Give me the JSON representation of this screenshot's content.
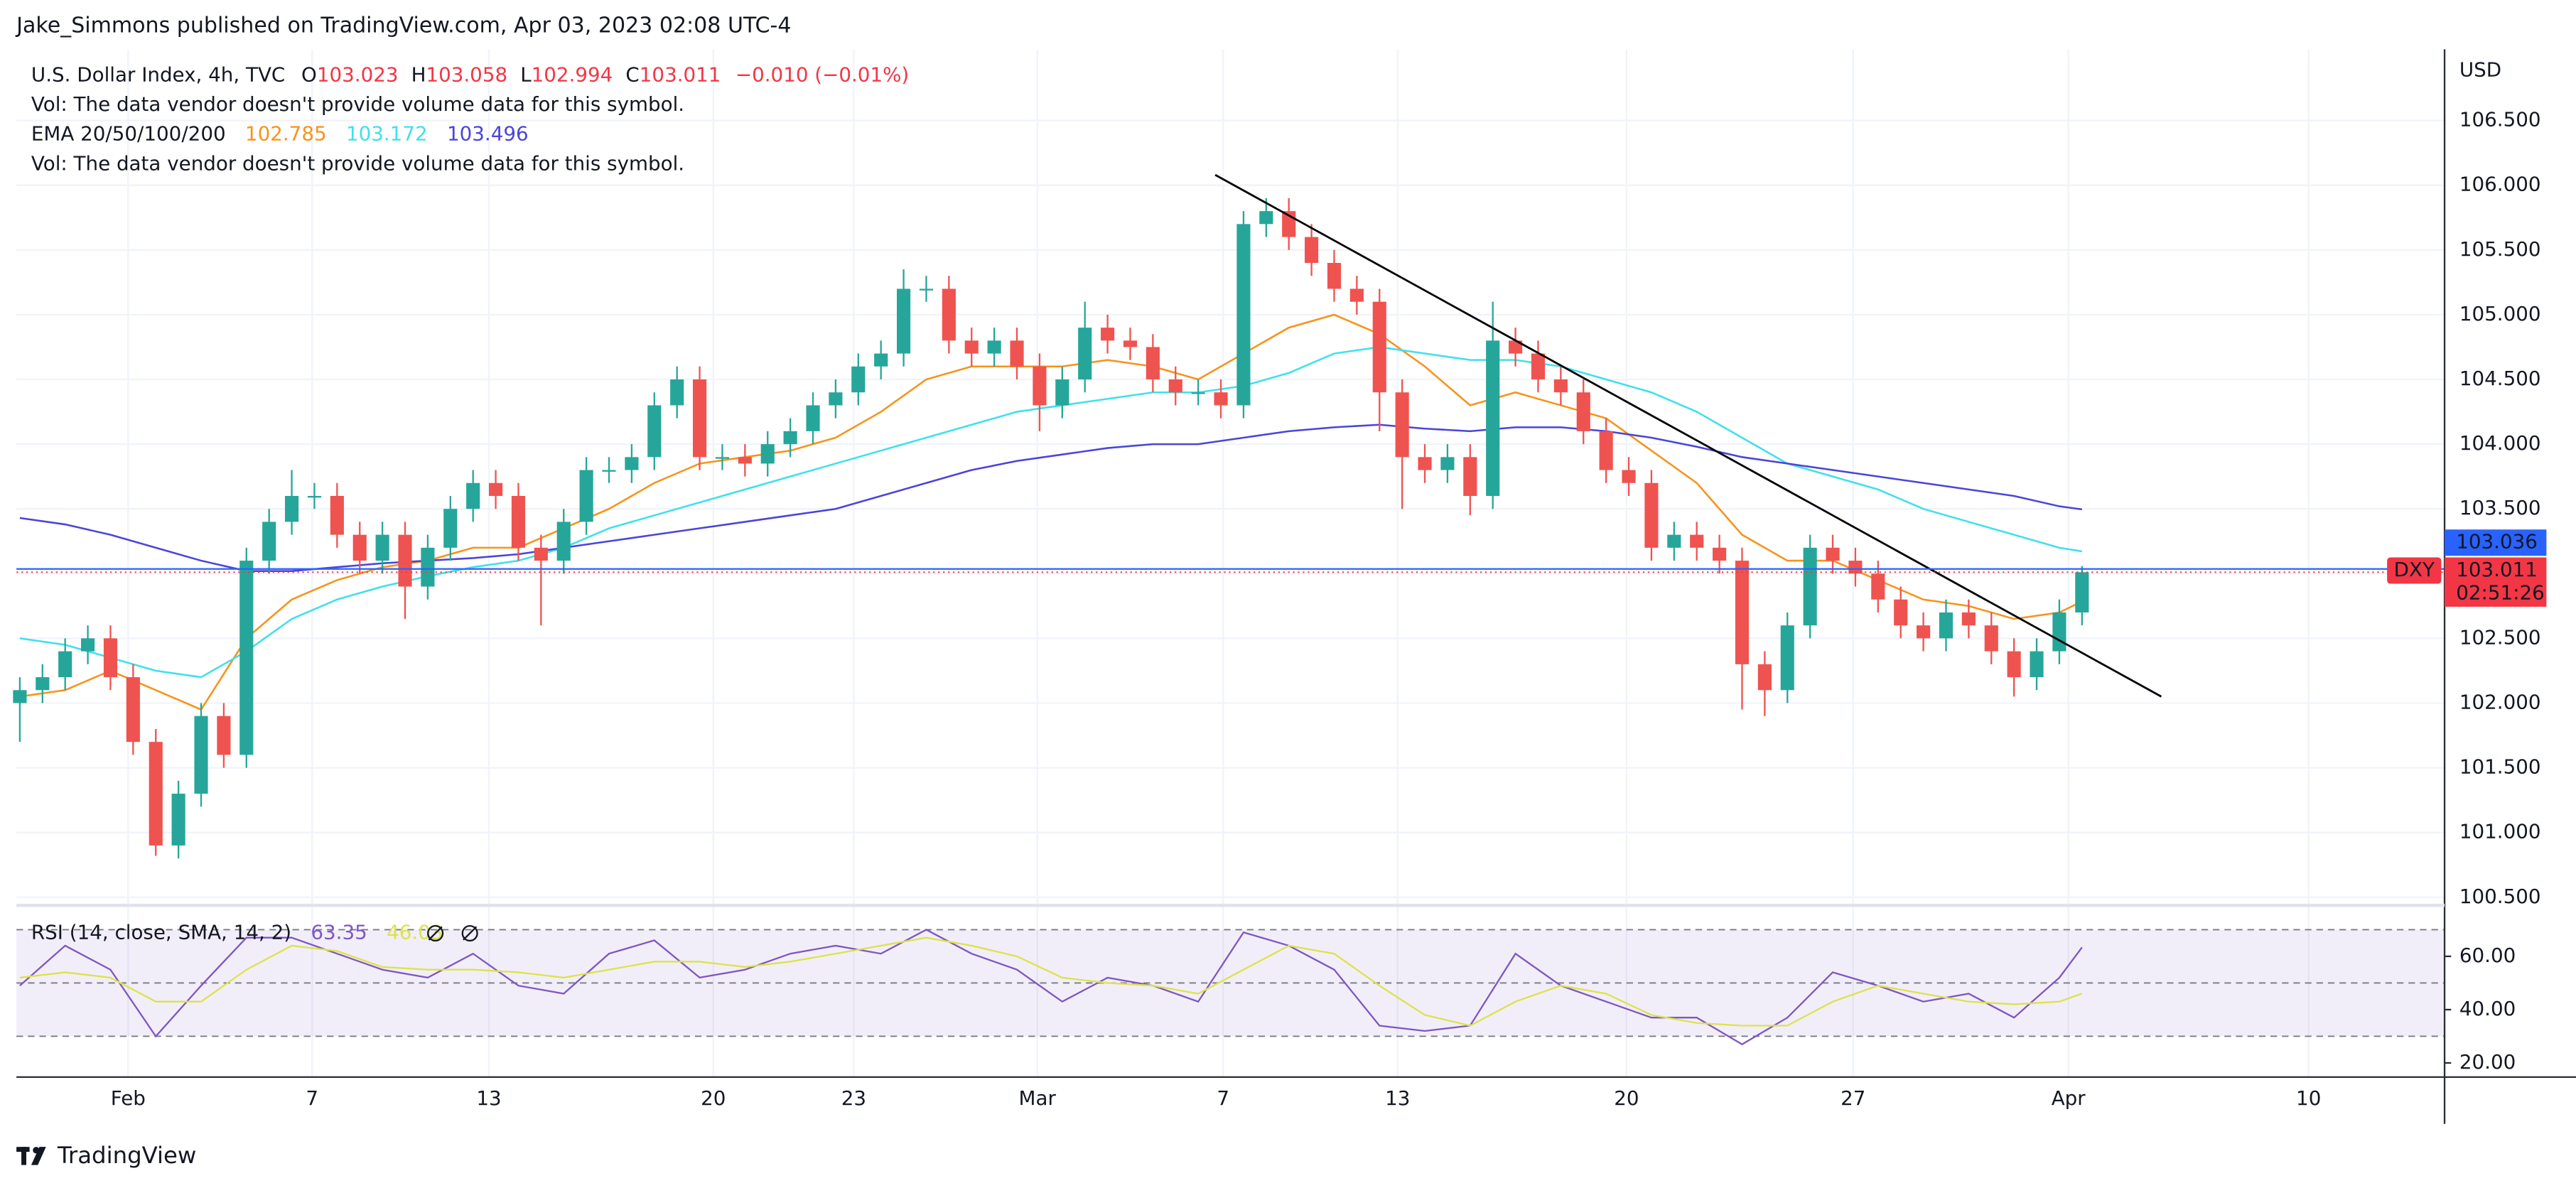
{
  "header": {
    "publisher": "Jake_Simmons published on TradingView.com, Apr 03, 2023 02:08 UTC-4",
    "logo": "TradingView"
  },
  "chart_data": [
    {
      "type": "candlestick",
      "symbol": "DXY",
      "currency": "USD",
      "legend": {
        "title": "U.S. Dollar Index, 4h, TVC",
        "ohlc": [
          {
            "key": "O",
            "value": 103.023
          },
          {
            "key": "H",
            "value": 103.058
          },
          {
            "key": "L",
            "value": 102.994
          },
          {
            "key": "C",
            "value": 103.011
          }
        ],
        "change": "−0.010 (−0.01%)",
        "notes": [
          "Vol: The data vendor doesn't provide volume data for this symbol.",
          "Vol: The data vendor doesn't provide volume data for this symbol."
        ],
        "ema_title": "EMA 20/50/100/200"
      },
      "up_color": "#26a69a",
      "down_color": "#ef5350",
      "open": [
        102.0,
        102.1,
        102.2,
        102.4,
        102.5,
        102.2,
        101.7,
        100.9,
        101.3,
        101.9,
        101.6,
        103.1,
        103.4,
        103.6,
        103.6,
        103.3,
        103.1,
        103.3,
        102.9,
        103.2,
        103.5,
        103.7,
        103.6,
        103.2,
        103.1,
        103.4,
        103.8,
        103.8,
        103.9,
        104.3,
        104.5,
        103.9,
        103.9,
        103.85,
        104.0,
        104.1,
        104.3,
        104.4,
        104.6,
        104.7,
        105.2,
        105.2,
        104.8,
        104.7,
        104.8,
        104.6,
        104.3,
        104.5,
        104.9,
        104.8,
        104.75,
        104.5,
        104.4,
        104.4,
        104.3,
        105.7,
        105.8,
        105.6,
        105.4,
        105.2,
        105.1,
        104.4,
        103.9,
        103.8,
        103.9,
        103.6,
        104.8,
        104.7,
        104.5,
        104.4,
        104.1,
        103.8,
        103.7,
        103.2,
        103.3,
        103.2,
        103.1,
        102.3,
        102.1,
        102.6,
        103.2,
        103.1,
        103.0,
        102.8,
        102.6,
        102.5,
        102.7,
        102.6,
        102.4,
        102.2,
        102.4,
        102.7
      ],
      "high": [
        102.2,
        102.3,
        102.5,
        102.6,
        102.6,
        102.3,
        101.8,
        101.4,
        102.0,
        102.0,
        103.2,
        103.5,
        103.8,
        103.7,
        103.7,
        103.4,
        103.4,
        103.4,
        103.3,
        103.6,
        103.8,
        103.8,
        103.7,
        103.3,
        103.5,
        103.9,
        103.9,
        104.0,
        104.4,
        104.6,
        104.6,
        104.0,
        104.0,
        104.1,
        104.2,
        104.4,
        104.5,
        104.7,
        104.8,
        105.35,
        105.3,
        105.3,
        104.9,
        104.9,
        104.9,
        104.7,
        104.6,
        105.1,
        105.0,
        104.9,
        104.85,
        104.6,
        104.5,
        104.5,
        105.8,
        105.9,
        105.9,
        105.7,
        105.5,
        105.3,
        105.2,
        104.5,
        104.0,
        104.0,
        104.0,
        105.1,
        104.9,
        104.8,
        104.6,
        104.5,
        104.2,
        103.9,
        103.8,
        103.4,
        103.4,
        103.3,
        103.2,
        102.4,
        102.7,
        103.3,
        103.3,
        103.2,
        103.1,
        102.9,
        102.7,
        102.8,
        102.8,
        102.7,
        102.5,
        102.5,
        102.8,
        103.058
      ],
      "low": [
        101.7,
        102.0,
        102.1,
        102.3,
        102.1,
        101.6,
        100.82,
        100.8,
        101.2,
        101.5,
        101.5,
        103.0,
        103.3,
        103.5,
        103.2,
        103.0,
        103.0,
        102.65,
        102.8,
        103.1,
        103.4,
        103.5,
        103.1,
        102.6,
        103.0,
        103.3,
        103.7,
        103.7,
        103.8,
        104.2,
        103.8,
        103.8,
        103.75,
        103.75,
        103.9,
        104.0,
        104.2,
        104.3,
        104.5,
        104.6,
        105.1,
        104.7,
        104.6,
        104.6,
        104.5,
        104.1,
        104.2,
        104.4,
        104.7,
        104.65,
        104.4,
        104.3,
        104.3,
        104.2,
        104.2,
        105.6,
        105.5,
        105.3,
        105.1,
        105.0,
        104.1,
        103.5,
        103.7,
        103.7,
        103.45,
        103.5,
        104.6,
        104.4,
        104.3,
        104.0,
        103.7,
        103.6,
        103.1,
        103.1,
        103.1,
        103.0,
        101.95,
        101.9,
        102.0,
        102.5,
        103.0,
        102.9,
        102.7,
        102.5,
        102.4,
        102.4,
        102.5,
        102.3,
        102.05,
        102.1,
        102.3,
        102.6
      ],
      "close": [
        102.1,
        102.2,
        102.4,
        102.5,
        102.2,
        101.7,
        100.9,
        101.3,
        101.9,
        101.6,
        103.1,
        103.4,
        103.6,
        103.6,
        103.3,
        103.1,
        103.3,
        102.9,
        103.2,
        103.5,
        103.7,
        103.6,
        103.2,
        103.1,
        103.4,
        103.8,
        103.8,
        103.9,
        104.3,
        104.5,
        103.9,
        103.9,
        103.85,
        104.0,
        104.1,
        104.3,
        104.4,
        104.6,
        104.7,
        105.2,
        105.2,
        104.8,
        104.7,
        104.8,
        104.6,
        104.3,
        104.5,
        104.9,
        104.8,
        104.75,
        104.5,
        104.4,
        104.4,
        104.3,
        105.7,
        105.8,
        105.6,
        105.4,
        105.2,
        105.1,
        104.4,
        103.9,
        103.8,
        103.9,
        103.6,
        104.8,
        104.7,
        104.5,
        104.4,
        104.1,
        103.8,
        103.7,
        103.2,
        103.3,
        103.2,
        103.1,
        102.3,
        102.1,
        102.6,
        103.2,
        103.1,
        103.0,
        102.8,
        102.6,
        102.5,
        102.7,
        102.6,
        102.4,
        102.2,
        102.4,
        102.7,
        103.011
      ],
      "line_x": [
        0,
        2,
        4,
        6,
        8,
        10,
        12,
        14,
        16,
        18,
        20,
        22,
        24,
        26,
        28,
        30,
        32,
        34,
        36,
        38,
        40,
        42,
        44,
        46,
        48,
        50,
        52,
        54,
        56,
        58,
        60,
        62,
        64,
        66,
        68,
        70,
        72,
        74,
        76,
        78,
        80,
        82,
        84,
        86,
        88,
        90,
        91
      ],
      "series": [
        {
          "color": "#f7931a",
          "values": [
            102.05,
            102.1,
            102.25,
            102.1,
            101.95,
            102.5,
            102.8,
            102.95,
            103.05,
            103.1,
            103.2,
            103.2,
            103.35,
            103.5,
            103.7,
            103.85,
            103.9,
            103.95,
            104.05,
            104.25,
            104.5,
            104.6,
            104.6,
            104.6,
            104.65,
            104.6,
            104.5,
            104.7,
            104.9,
            105.0,
            104.85,
            104.6,
            104.3,
            104.4,
            104.3,
            104.2,
            103.95,
            103.7,
            103.3,
            103.1,
            103.1,
            102.95,
            102.8,
            102.75,
            102.65,
            102.7,
            102.785
          ]
        },
        {
          "color": "#3fe0ec",
          "values": [
            102.5,
            102.45,
            102.35,
            102.25,
            102.2,
            102.4,
            102.65,
            102.8,
            102.9,
            102.98,
            103.05,
            103.1,
            103.2,
            103.35,
            103.45,
            103.55,
            103.65,
            103.75,
            103.85,
            103.95,
            104.05,
            104.15,
            104.25,
            104.3,
            104.35,
            104.4,
            104.4,
            104.45,
            104.55,
            104.7,
            104.75,
            104.7,
            104.65,
            104.65,
            104.6,
            104.5,
            104.4,
            104.25,
            104.05,
            103.85,
            103.75,
            103.65,
            103.5,
            103.4,
            103.3,
            103.2,
            103.172
          ]
        },
        {
          "color": "#4b45d9",
          "values": [
            103.43,
            103.38,
            103.3,
            103.2,
            103.1,
            103.02,
            103.02,
            103.05,
            103.08,
            103.1,
            103.12,
            103.15,
            103.2,
            103.25,
            103.3,
            103.35,
            103.4,
            103.45,
            103.5,
            103.6,
            103.7,
            103.8,
            103.87,
            103.92,
            103.97,
            104.0,
            104.0,
            104.05,
            104.1,
            104.13,
            104.15,
            104.12,
            104.1,
            104.13,
            104.13,
            104.1,
            104.05,
            103.98,
            103.9,
            103.85,
            103.8,
            103.75,
            103.7,
            103.65,
            103.6,
            103.52,
            103.496
          ]
        }
      ],
      "trendline": {
        "x": [
          52.75,
          94.5
        ],
        "y": [
          106.08,
          102.05
        ],
        "color": "#000000"
      },
      "price_line": {
        "value": 103.036,
        "color": "#2962ff"
      },
      "last_price_color": "#f23645",
      "countdown": "02:51:26",
      "xlim": [
        -0.15,
        107
      ],
      "xticks": [
        {
          "value": 4.78,
          "label": "Feb"
        },
        {
          "value": 12.9,
          "label": "7"
        },
        {
          "value": 20.7,
          "label": "13"
        },
        {
          "value": 30.6,
          "label": "20"
        },
        {
          "value": 36.8,
          "label": "23"
        },
        {
          "value": 44.9,
          "label": "Mar"
        },
        {
          "value": 53.1,
          "label": "7"
        },
        {
          "value": 60.8,
          "label": "13"
        },
        {
          "value": 70.9,
          "label": "20"
        },
        {
          "value": 80.9,
          "label": "27"
        },
        {
          "value": 90.4,
          "label": "Apr"
        },
        {
          "value": 101.0,
          "label": "10"
        }
      ],
      "ylim": [
        100.45,
        107.05
      ],
      "yticks": [
        {
          "value": 100.5,
          "label": "100.500"
        },
        {
          "value": 101,
          "label": "101.000"
        },
        {
          "value": 101.5,
          "label": "101.500"
        },
        {
          "value": 102,
          "label": "102.000"
        },
        {
          "value": 102.5,
          "label": "102.500"
        },
        {
          "value": 103,
          "label": "103.000"
        },
        {
          "value": 103.5,
          "label": "103.500"
        },
        {
          "value": 104,
          "label": "104.000"
        },
        {
          "value": 104.5,
          "label": "104.500"
        },
        {
          "value": 105,
          "label": "105.000"
        },
        {
          "value": 105.5,
          "label": "105.500"
        },
        {
          "value": 106,
          "label": "106.000"
        },
        {
          "value": 106.5,
          "label": "106.500"
        }
      ],
      "grid": true
    },
    {
      "type": "line",
      "title": "RSI (14, close, SMA, 14, 2)",
      "x": [
        0,
        2,
        4,
        6,
        8,
        10,
        12,
        14,
        16,
        18,
        20,
        22,
        24,
        26,
        28,
        30,
        32,
        34,
        36,
        38,
        40,
        42,
        44,
        46,
        48,
        50,
        52,
        54,
        56,
        58,
        60,
        62,
        64,
        66,
        68,
        70,
        72,
        74,
        76,
        78,
        80,
        82,
        84,
        86,
        88,
        90,
        91
      ],
      "series": [
        {
          "color": "#7e57c2",
          "values": [
            49,
            64,
            55,
            30,
            49,
            67,
            67,
            61,
            55,
            52,
            61,
            49,
            46,
            61,
            66,
            52,
            55,
            61,
            64,
            61,
            70,
            61,
            55,
            43,
            52,
            49,
            43,
            69,
            64,
            55,
            34,
            32,
            34,
            61,
            49,
            43,
            37,
            37,
            27,
            37,
            54,
            49,
            43,
            46,
            37,
            52,
            63.35
          ]
        },
        {
          "color": "#dce34a",
          "values": [
            52,
            54,
            52,
            43,
            43,
            55,
            64,
            62,
            56,
            55,
            55,
            54,
            52,
            55,
            58,
            58,
            56,
            58,
            61,
            64,
            67,
            64,
            60,
            52,
            50,
            49,
            46,
            55,
            64,
            61,
            49,
            38,
            34,
            43,
            49,
            46,
            38,
            35,
            34,
            34,
            43,
            49,
            46,
            43,
            42,
            43,
            46.03
          ]
        }
      ],
      "levels": [
        70,
        50,
        30
      ],
      "band_color": "#7e57c2",
      "ylim": [
        15,
        78.5
      ],
      "yticks": [
        {
          "value": 60,
          "label": "60.00"
        },
        {
          "value": 40,
          "label": "40.00"
        },
        {
          "value": 20,
          "label": "20.00"
        }
      ],
      "grid": true
    }
  ]
}
